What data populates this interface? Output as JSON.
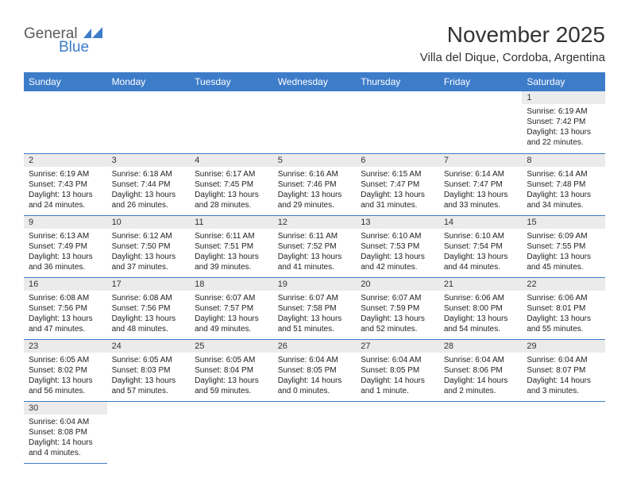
{
  "colors": {
    "header_bg": "#3d7cc9",
    "header_text": "#ffffff",
    "daynum_bg": "#ebebeb",
    "row_border": "#3d7cc9",
    "body_text": "#222222",
    "title_text": "#333333",
    "logo_gray": "#5a5a5a",
    "logo_blue": "#3d7cc9"
  },
  "logo": {
    "text1": "General",
    "text2": "Blue"
  },
  "title": "November 2025",
  "location": "Villa del Dique, Cordoba, Argentina",
  "weekdays": [
    "Sunday",
    "Monday",
    "Tuesday",
    "Wednesday",
    "Thursday",
    "Friday",
    "Saturday"
  ],
  "grid": {
    "columns": 7,
    "rows": 6
  },
  "days": [
    {
      "n": 1,
      "sunrise": "6:19 AM",
      "sunset": "7:42 PM",
      "daylight": "13 hours and 22 minutes."
    },
    {
      "n": 2,
      "sunrise": "6:19 AM",
      "sunset": "7:43 PM",
      "daylight": "13 hours and 24 minutes."
    },
    {
      "n": 3,
      "sunrise": "6:18 AM",
      "sunset": "7:44 PM",
      "daylight": "13 hours and 26 minutes."
    },
    {
      "n": 4,
      "sunrise": "6:17 AM",
      "sunset": "7:45 PM",
      "daylight": "13 hours and 28 minutes."
    },
    {
      "n": 5,
      "sunrise": "6:16 AM",
      "sunset": "7:46 PM",
      "daylight": "13 hours and 29 minutes."
    },
    {
      "n": 6,
      "sunrise": "6:15 AM",
      "sunset": "7:47 PM",
      "daylight": "13 hours and 31 minutes."
    },
    {
      "n": 7,
      "sunrise": "6:14 AM",
      "sunset": "7:47 PM",
      "daylight": "13 hours and 33 minutes."
    },
    {
      "n": 8,
      "sunrise": "6:14 AM",
      "sunset": "7:48 PM",
      "daylight": "13 hours and 34 minutes."
    },
    {
      "n": 9,
      "sunrise": "6:13 AM",
      "sunset": "7:49 PM",
      "daylight": "13 hours and 36 minutes."
    },
    {
      "n": 10,
      "sunrise": "6:12 AM",
      "sunset": "7:50 PM",
      "daylight": "13 hours and 37 minutes."
    },
    {
      "n": 11,
      "sunrise": "6:11 AM",
      "sunset": "7:51 PM",
      "daylight": "13 hours and 39 minutes."
    },
    {
      "n": 12,
      "sunrise": "6:11 AM",
      "sunset": "7:52 PM",
      "daylight": "13 hours and 41 minutes."
    },
    {
      "n": 13,
      "sunrise": "6:10 AM",
      "sunset": "7:53 PM",
      "daylight": "13 hours and 42 minutes."
    },
    {
      "n": 14,
      "sunrise": "6:10 AM",
      "sunset": "7:54 PM",
      "daylight": "13 hours and 44 minutes."
    },
    {
      "n": 15,
      "sunrise": "6:09 AM",
      "sunset": "7:55 PM",
      "daylight": "13 hours and 45 minutes."
    },
    {
      "n": 16,
      "sunrise": "6:08 AM",
      "sunset": "7:56 PM",
      "daylight": "13 hours and 47 minutes."
    },
    {
      "n": 17,
      "sunrise": "6:08 AM",
      "sunset": "7:56 PM",
      "daylight": "13 hours and 48 minutes."
    },
    {
      "n": 18,
      "sunrise": "6:07 AM",
      "sunset": "7:57 PM",
      "daylight": "13 hours and 49 minutes."
    },
    {
      "n": 19,
      "sunrise": "6:07 AM",
      "sunset": "7:58 PM",
      "daylight": "13 hours and 51 minutes."
    },
    {
      "n": 20,
      "sunrise": "6:07 AM",
      "sunset": "7:59 PM",
      "daylight": "13 hours and 52 minutes."
    },
    {
      "n": 21,
      "sunrise": "6:06 AM",
      "sunset": "8:00 PM",
      "daylight": "13 hours and 54 minutes."
    },
    {
      "n": 22,
      "sunrise": "6:06 AM",
      "sunset": "8:01 PM",
      "daylight": "13 hours and 55 minutes."
    },
    {
      "n": 23,
      "sunrise": "6:05 AM",
      "sunset": "8:02 PM",
      "daylight": "13 hours and 56 minutes."
    },
    {
      "n": 24,
      "sunrise": "6:05 AM",
      "sunset": "8:03 PM",
      "daylight": "13 hours and 57 minutes."
    },
    {
      "n": 25,
      "sunrise": "6:05 AM",
      "sunset": "8:04 PM",
      "daylight": "13 hours and 59 minutes."
    },
    {
      "n": 26,
      "sunrise": "6:04 AM",
      "sunset": "8:05 PM",
      "daylight": "14 hours and 0 minutes."
    },
    {
      "n": 27,
      "sunrise": "6:04 AM",
      "sunset": "8:05 PM",
      "daylight": "14 hours and 1 minute."
    },
    {
      "n": 28,
      "sunrise": "6:04 AM",
      "sunset": "8:06 PM",
      "daylight": "14 hours and 2 minutes."
    },
    {
      "n": 29,
      "sunrise": "6:04 AM",
      "sunset": "8:07 PM",
      "daylight": "14 hours and 3 minutes."
    },
    {
      "n": 30,
      "sunrise": "6:04 AM",
      "sunset": "8:08 PM",
      "daylight": "14 hours and 4 minutes."
    }
  ],
  "labels": {
    "sunrise_prefix": "Sunrise: ",
    "sunset_prefix": "Sunset: ",
    "daylight_prefix": "Daylight: "
  },
  "first_weekday_index": 6
}
